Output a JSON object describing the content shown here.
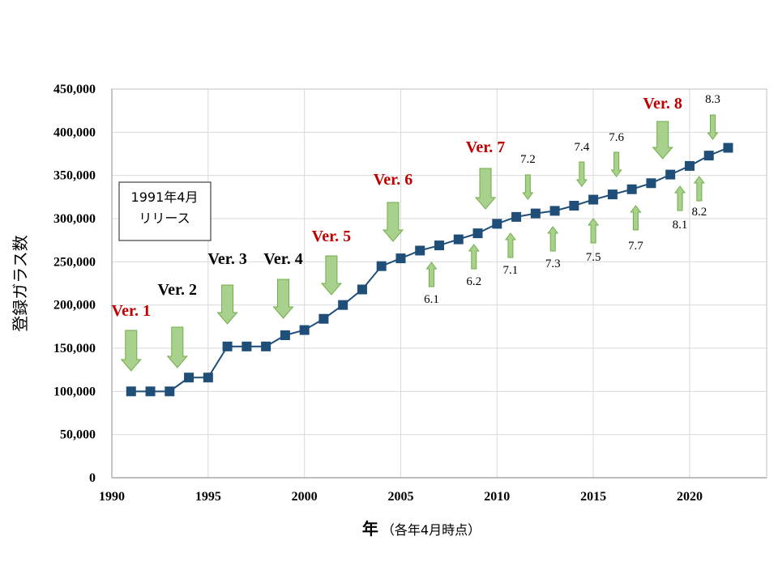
{
  "chart_data": {
    "type": "line",
    "title": "",
    "ylabel": "登録ガラス数",
    "xlabel": "年",
    "xlabel_note": "（各年4月時点）",
    "xlim": [
      1990,
      2024
    ],
    "ylim": [
      0,
      450000
    ],
    "x_ticks": [
      "1990",
      "1995",
      "2000",
      "2005",
      "2010",
      "2015",
      "2020"
    ],
    "y_ticks": [
      "0",
      "50,000",
      "100,000",
      "150,000",
      "200,000",
      "250,000",
      "300,000",
      "350,000",
      "400,000",
      "450,000"
    ],
    "grid": true,
    "series": [
      {
        "x": [
          1991,
          1992,
          1993,
          1994,
          1995,
          1996,
          1997,
          1998,
          1999,
          2000,
          2001,
          2002,
          2003,
          2004,
          2005,
          2006,
          2007,
          2008,
          2009,
          2010,
          2011,
          2012,
          2013,
          2014,
          2015,
          2016,
          2017,
          2018,
          2019,
          2020,
          2021,
          2022
        ],
        "values": [
          100000,
          100000,
          100000,
          116000,
          116000,
          152000,
          152000,
          152000,
          165000,
          171000,
          184000,
          200000,
          218000,
          245000,
          254000,
          263000,
          269000,
          276000,
          283000,
          294000,
          302000,
          306000,
          309000,
          315000,
          322000,
          328000,
          334000,
          341000,
          351000,
          361000,
          373000,
          382000
        ],
        "color": "#1f4e79"
      }
    ],
    "annotations": {
      "release_box": "1991年4月\nリリース",
      "major_versions": [
        {
          "label": "Ver. 1",
          "year": 1991.0,
          "color": "#c00000"
        },
        {
          "label": "Ver. 2",
          "year": 1993.4,
          "color": "#000000"
        },
        {
          "label": "Ver. 3",
          "year": 1996.0,
          "color": "#000000"
        },
        {
          "label": "Ver. 4",
          "year": 1998.9,
          "color": "#000000"
        },
        {
          "label": "Ver. 5",
          "year": 2001.4,
          "color": "#c00000"
        },
        {
          "label": "Ver. 6",
          "year": 2004.6,
          "color": "#c00000"
        },
        {
          "label": "Ver. 7",
          "year": 2009.4,
          "color": "#c00000"
        },
        {
          "label": "Ver. 8",
          "year": 2018.6,
          "color": "#c00000"
        }
      ],
      "minor_versions": [
        {
          "label": "6.1",
          "year": 2006.6,
          "dir": "up"
        },
        {
          "label": "6.2",
          "year": 2008.8,
          "dir": "up"
        },
        {
          "label": "7.1",
          "year": 2010.7,
          "dir": "up"
        },
        {
          "label": "7.2",
          "year": 2011.6,
          "dir": "down"
        },
        {
          "label": "7.3",
          "year": 2012.9,
          "dir": "up"
        },
        {
          "label": "7.4",
          "year": 2014.4,
          "dir": "down"
        },
        {
          "label": "7.5",
          "year": 2015.0,
          "dir": "up"
        },
        {
          "label": "7.6",
          "year": 2016.2,
          "dir": "down"
        },
        {
          "label": "7.7",
          "year": 2017.2,
          "dir": "up"
        },
        {
          "label": "8.1",
          "year": 2019.5,
          "dir": "up"
        },
        {
          "label": "8.2",
          "year": 2020.5,
          "dir": "up"
        },
        {
          "label": "8.3",
          "year": 2021.2,
          "dir": "down"
        }
      ]
    }
  },
  "colors": {
    "line": "#1f4e79",
    "marker": "#1f4e79",
    "arrow_fill": "#a9d18e",
    "arrow_stroke": "#70ad47",
    "grid": "#d9d9d9",
    "axis": "#000000",
    "highlight": "#c00000"
  }
}
